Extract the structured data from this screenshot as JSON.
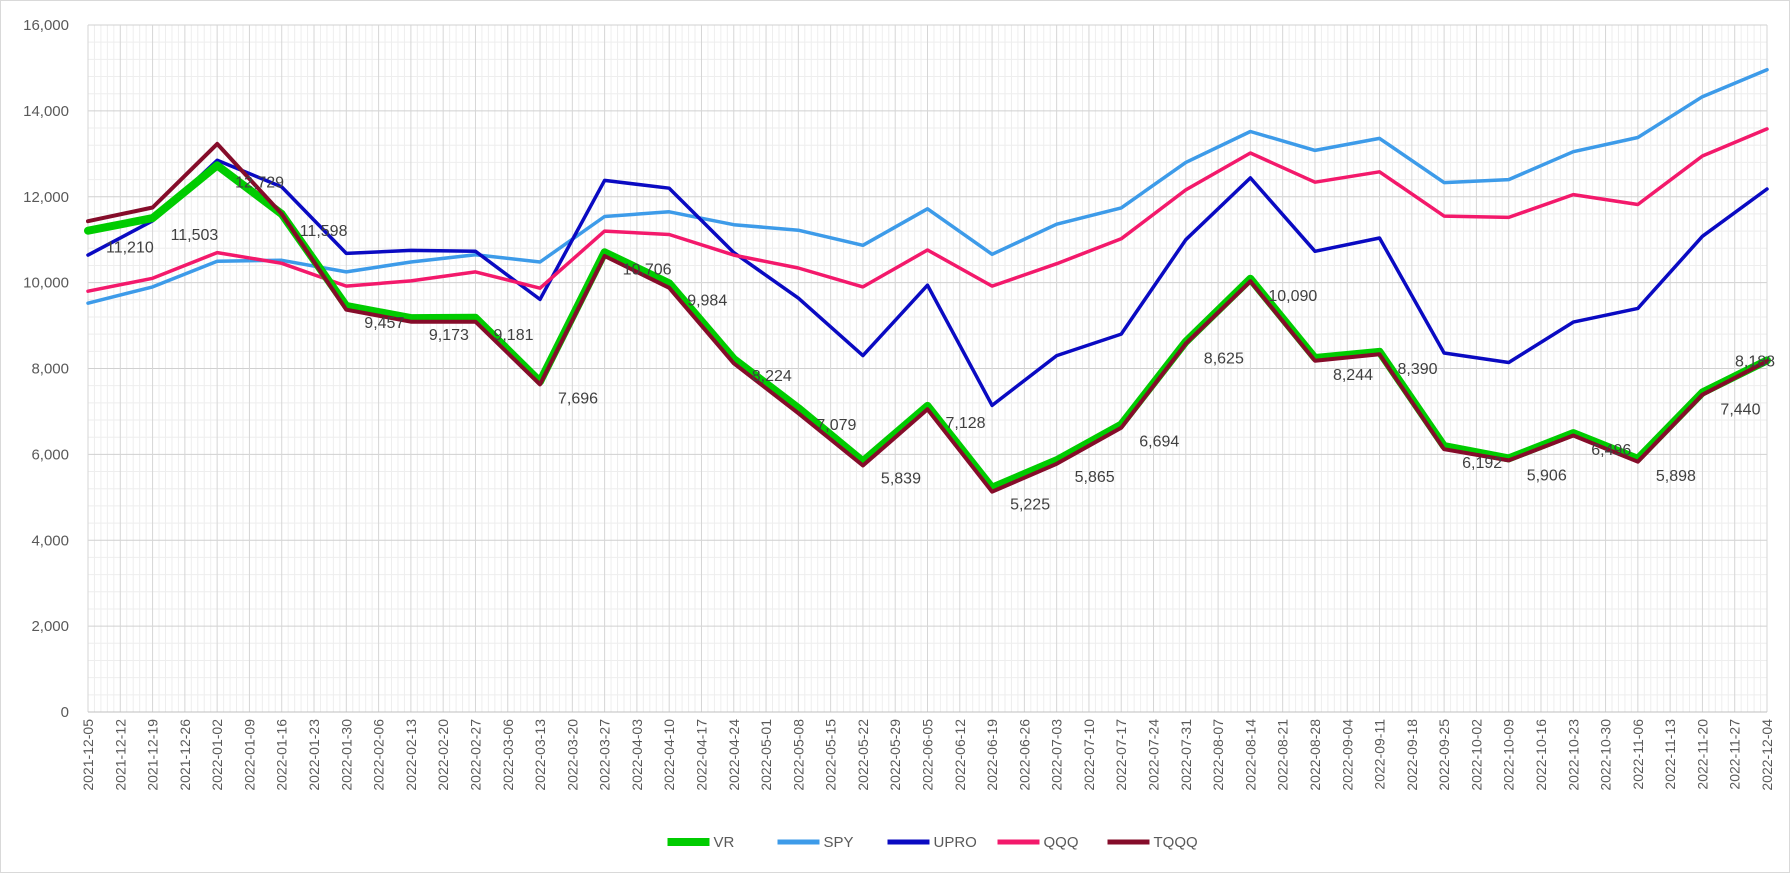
{
  "chart_data": {
    "type": "line",
    "ylim": [
      0,
      16000
    ],
    "yticks": [
      0,
      2000,
      4000,
      6000,
      8000,
      10000,
      12000,
      14000,
      16000
    ],
    "ytick_labels": [
      "0",
      "2,000",
      "4,000",
      "6,000",
      "8,000",
      "10,000",
      "12,000",
      "14,000",
      "16,000"
    ],
    "grid": true,
    "legend": "bottom",
    "x": [
      "2021-12-05",
      "2021-12-12",
      "2021-12-19",
      "2021-12-26",
      "2022-01-02",
      "2022-01-09",
      "2022-01-16",
      "2022-01-23",
      "2022-01-30",
      "2022-02-06",
      "2022-02-13",
      "2022-02-20",
      "2022-02-27",
      "2022-03-06",
      "2022-03-13",
      "2022-03-20",
      "2022-03-27",
      "2022-04-03",
      "2022-04-10",
      "2022-04-17",
      "2022-04-24",
      "2022-05-01",
      "2022-05-08",
      "2022-05-15",
      "2022-05-22",
      "2022-05-29",
      "2022-06-05",
      "2022-06-12",
      "2022-06-19",
      "2022-06-26",
      "2022-07-03",
      "2022-07-10",
      "2022-07-17",
      "2022-07-24",
      "2022-07-31",
      "2022-08-07",
      "2022-08-14",
      "2022-08-21",
      "2022-08-28",
      "2022-09-04",
      "2022-09-11",
      "2022-09-18",
      "2022-09-25",
      "2022-10-02",
      "2022-10-09",
      "2022-10-16",
      "2022-10-23",
      "2022-10-30",
      "2022-11-06",
      "2022-11-13",
      "2022-11-20",
      "2022-11-27",
      "2022-12-04"
    ],
    "series": [
      {
        "name": "SPY",
        "color": "#3d9be9",
        "width": 3.5,
        "points": [
          [
            0,
            9520
          ],
          [
            2,
            9900
          ],
          [
            4,
            10500
          ],
          [
            6,
            10520
          ],
          [
            8,
            10250
          ],
          [
            10,
            10480
          ],
          [
            12,
            10650
          ],
          [
            14,
            10480
          ],
          [
            16,
            11540
          ],
          [
            18,
            11650
          ],
          [
            20,
            11350
          ],
          [
            22,
            11220
          ],
          [
            24,
            10870
          ],
          [
            26,
            11720
          ],
          [
            28,
            10660
          ],
          [
            30,
            11360
          ],
          [
            32,
            11740
          ],
          [
            34,
            12800
          ],
          [
            36,
            13520
          ],
          [
            38,
            13080
          ],
          [
            40,
            13360
          ],
          [
            42,
            12330
          ],
          [
            44,
            12400
          ],
          [
            46,
            13050
          ],
          [
            48,
            13380
          ],
          [
            50,
            14330
          ],
          [
            52,
            14960
          ]
        ]
      },
      {
        "name": "UPRO",
        "color": "#0a0ac2",
        "width": 3.5,
        "points": [
          [
            0,
            10640
          ],
          [
            2,
            11440
          ],
          [
            4,
            12850
          ],
          [
            6,
            12230
          ],
          [
            8,
            10680
          ],
          [
            10,
            10750
          ],
          [
            12,
            10730
          ],
          [
            14,
            9610
          ],
          [
            16,
            12380
          ],
          [
            18,
            12200
          ],
          [
            20,
            10700
          ],
          [
            22,
            9640
          ],
          [
            24,
            8300
          ],
          [
            26,
            9940
          ],
          [
            28,
            7140
          ],
          [
            30,
            8300
          ],
          [
            32,
            8800
          ],
          [
            34,
            11000
          ],
          [
            36,
            12440
          ],
          [
            38,
            10730
          ],
          [
            40,
            11040
          ],
          [
            42,
            8360
          ],
          [
            44,
            8140
          ],
          [
            46,
            9080
          ],
          [
            48,
            9400
          ],
          [
            50,
            11080
          ],
          [
            52,
            12180
          ]
        ]
      },
      {
        "name": "QQQ",
        "color": "#f3196b",
        "width": 3.5,
        "points": [
          [
            0,
            9800
          ],
          [
            2,
            10100
          ],
          [
            4,
            10700
          ],
          [
            6,
            10450
          ],
          [
            8,
            9920
          ],
          [
            10,
            10040
          ],
          [
            12,
            10250
          ],
          [
            14,
            9870
          ],
          [
            16,
            11200
          ],
          [
            18,
            11120
          ],
          [
            20,
            10640
          ],
          [
            22,
            10340
          ],
          [
            24,
            9900
          ],
          [
            26,
            10760
          ],
          [
            28,
            9920
          ],
          [
            30,
            10440
          ],
          [
            32,
            11020
          ],
          [
            34,
            12160
          ],
          [
            36,
            13020
          ],
          [
            38,
            12340
          ],
          [
            40,
            12580
          ],
          [
            42,
            11550
          ],
          [
            44,
            11520
          ],
          [
            46,
            12050
          ],
          [
            48,
            11820
          ],
          [
            50,
            12950
          ],
          [
            52,
            13580
          ]
        ]
      },
      {
        "name": "VR",
        "color": "#00cc00",
        "width": 8,
        "points": [
          [
            0,
            11210
          ],
          [
            2,
            11503
          ],
          [
            4,
            12729
          ],
          [
            6,
            11598
          ],
          [
            8,
            9457
          ],
          [
            10,
            9173
          ],
          [
            12,
            9181
          ],
          [
            14,
            7696
          ],
          [
            16,
            10706
          ],
          [
            18,
            9984
          ],
          [
            20,
            8224
          ],
          [
            22,
            7079
          ],
          [
            24,
            5839
          ],
          [
            26,
            7128
          ],
          [
            28,
            5225
          ],
          [
            30,
            5865
          ],
          [
            32,
            6694
          ],
          [
            34,
            8625
          ],
          [
            36,
            10090
          ],
          [
            38,
            8244
          ],
          [
            40,
            8390
          ],
          [
            42,
            6192
          ],
          [
            44,
            5906
          ],
          [
            46,
            6496
          ],
          [
            48,
            5898
          ],
          [
            50,
            7440
          ],
          [
            52,
            8188
          ]
        ]
      },
      {
        "name": "TQQQ",
        "color": "#850c2a",
        "width": 4,
        "points": [
          [
            0,
            11430
          ],
          [
            2,
            11750
          ],
          [
            4,
            13230
          ],
          [
            6,
            11600
          ],
          [
            8,
            9370
          ],
          [
            10,
            9090
          ],
          [
            12,
            9090
          ],
          [
            14,
            7630
          ],
          [
            16,
            10620
          ],
          [
            18,
            9880
          ],
          [
            20,
            8120
          ],
          [
            22,
            6960
          ],
          [
            24,
            5740
          ],
          [
            26,
            7050
          ],
          [
            28,
            5130
          ],
          [
            30,
            5780
          ],
          [
            32,
            6620
          ],
          [
            34,
            8580
          ],
          [
            36,
            10030
          ],
          [
            38,
            8180
          ],
          [
            40,
            8330
          ],
          [
            42,
            6120
          ],
          [
            44,
            5860
          ],
          [
            46,
            6440
          ],
          [
            48,
            5830
          ],
          [
            50,
            7390
          ],
          [
            52,
            8170
          ]
        ]
      }
    ],
    "data_labels": [
      {
        "i": 0,
        "value": 11210,
        "text": "11,210"
      },
      {
        "i": 2,
        "value": 11503,
        "text": "11,503"
      },
      {
        "i": 4,
        "value": 12729,
        "text": "12,729"
      },
      {
        "i": 6,
        "value": 11598,
        "text": "11,598"
      },
      {
        "i": 8,
        "value": 9457,
        "text": "9,457"
      },
      {
        "i": 10,
        "value": 9173,
        "text": "9,173"
      },
      {
        "i": 12,
        "value": 9181,
        "text": "9,181"
      },
      {
        "i": 14,
        "value": 7696,
        "text": "7,696"
      },
      {
        "i": 16,
        "value": 10706,
        "text": "10,706"
      },
      {
        "i": 18,
        "value": 9984,
        "text": "9,984"
      },
      {
        "i": 20,
        "value": 8224,
        "text": "8,224"
      },
      {
        "i": 22,
        "value": 7079,
        "text": "7,079"
      },
      {
        "i": 24,
        "value": 5839,
        "text": "5,839"
      },
      {
        "i": 26,
        "value": 7128,
        "text": "7,128"
      },
      {
        "i": 28,
        "value": 5225,
        "text": "5,225"
      },
      {
        "i": 30,
        "value": 5865,
        "text": "5,865"
      },
      {
        "i": 32,
        "value": 6694,
        "text": "6,694"
      },
      {
        "i": 34,
        "value": 8625,
        "text": "8,625"
      },
      {
        "i": 36,
        "value": 10090,
        "text": "10,090"
      },
      {
        "i": 38,
        "value": 8244,
        "text": "8,244"
      },
      {
        "i": 40,
        "value": 8390,
        "text": "8,390"
      },
      {
        "i": 42,
        "value": 6192,
        "text": "6,192"
      },
      {
        "i": 44,
        "value": 5906,
        "text": "5,906"
      },
      {
        "i": 46,
        "value": 6496,
        "text": "6,496"
      },
      {
        "i": 48,
        "value": 5898,
        "text": "5,898"
      },
      {
        "i": 50,
        "value": 7440,
        "text": "7,440"
      },
      {
        "i": 52,
        "value": 8188,
        "text": "8,188"
      }
    ],
    "legend_order": [
      "VR",
      "SPY",
      "UPRO",
      "QQQ",
      "TQQQ"
    ]
  }
}
